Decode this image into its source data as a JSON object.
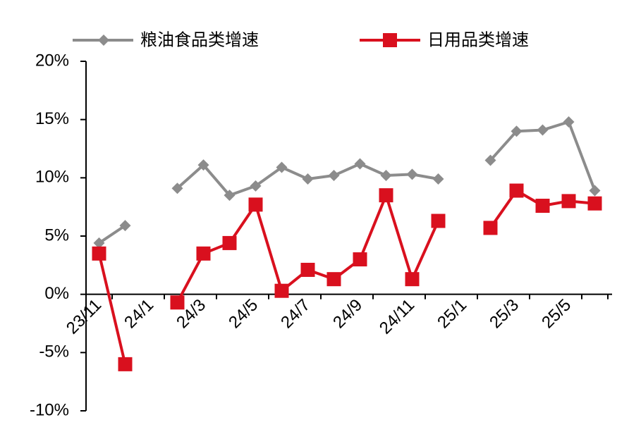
{
  "chart_data": {
    "type": "line",
    "categories": [
      "23/11",
      null,
      "24/1",
      null,
      "24/3",
      null,
      "24/5",
      null,
      "24/7",
      null,
      "24/9",
      null,
      "24/11",
      null,
      "25/1",
      null,
      "25/3",
      null,
      "25/5",
      null
    ],
    "series": [
      {
        "name": "粮油食品类增速",
        "color": "#8c8c8c",
        "marker": "diamond",
        "values": [
          4.4,
          5.9,
          null,
          9.1,
          11.1,
          8.5,
          9.3,
          10.9,
          9.9,
          10.2,
          11.2,
          10.2,
          10.3,
          9.9,
          null,
          11.5,
          14.0,
          14.1,
          14.8,
          8.9
        ]
      },
      {
        "name": "日用品类增速",
        "color": "#d9101e",
        "marker": "square",
        "values": [
          3.5,
          -6.0,
          null,
          -0.7,
          3.5,
          4.4,
          7.7,
          0.3,
          2.1,
          1.3,
          3.0,
          8.5,
          1.3,
          6.3,
          null,
          5.7,
          8.9,
          7.6,
          8.0,
          7.8
        ]
      }
    ],
    "ylim": [
      -10,
      20
    ],
    "yticks": [
      {
        "value": -10,
        "label": "-10%"
      },
      {
        "value": -5,
        "label": "-5%"
      },
      {
        "value": 0,
        "label": "0%"
      },
      {
        "value": 5,
        "label": "5%"
      },
      {
        "value": 10,
        "label": "10%"
      },
      {
        "value": 15,
        "label": "15%"
      },
      {
        "value": 20,
        "label": "20%"
      }
    ],
    "legend": "top"
  }
}
